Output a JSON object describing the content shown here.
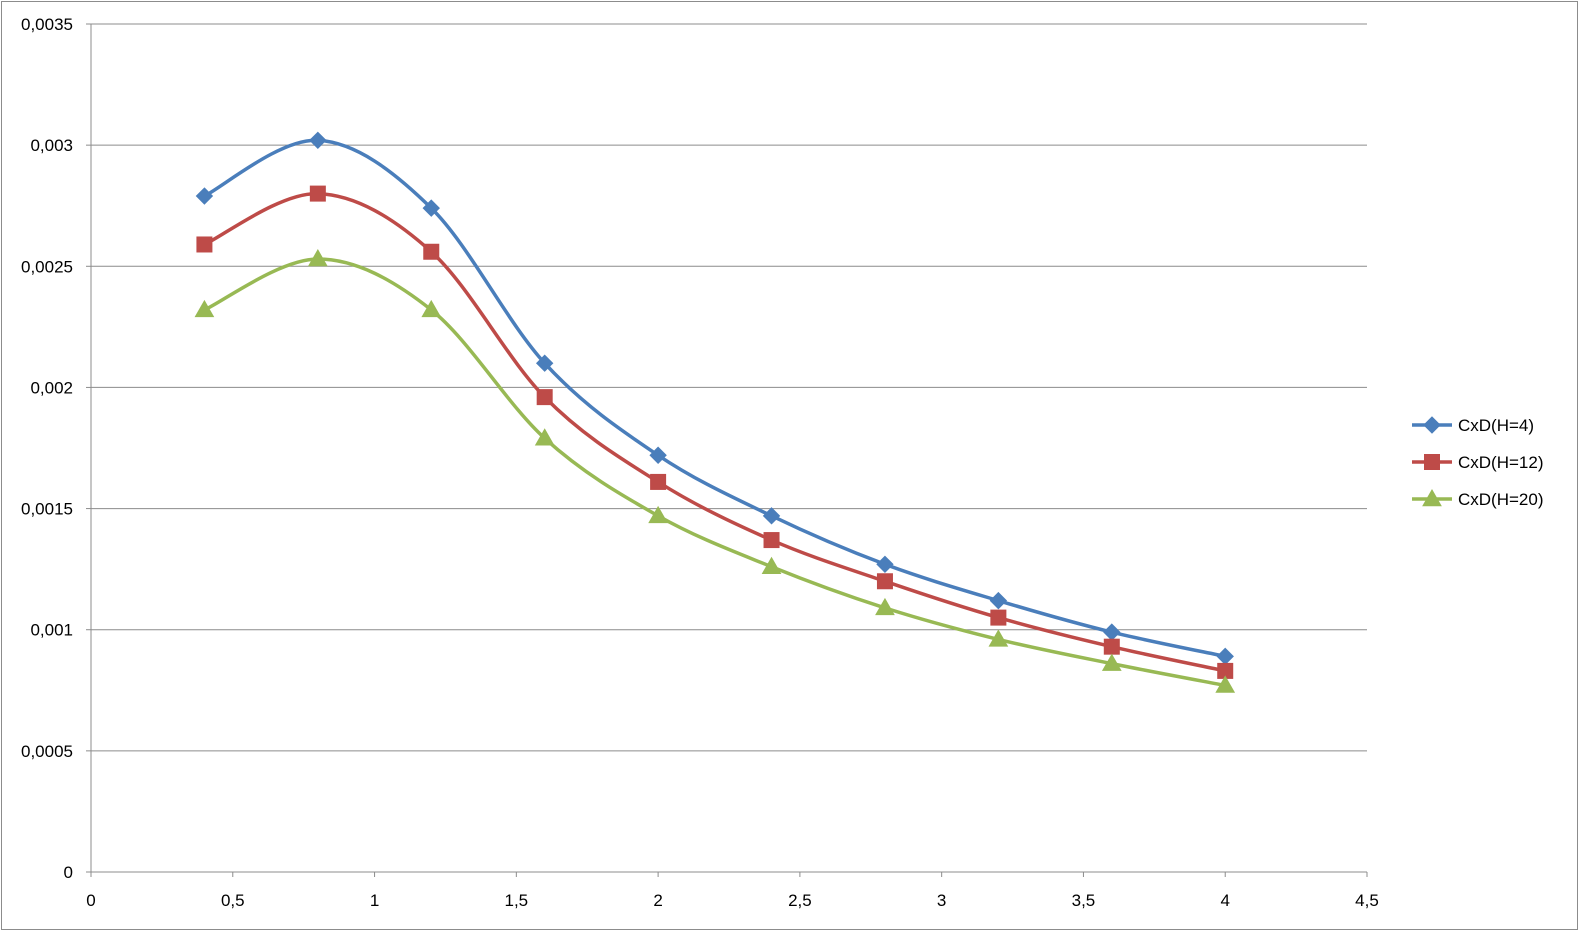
{
  "chart_data": {
    "type": "line",
    "title": "",
    "xlabel": "",
    "ylabel": "",
    "x": [
      0.4,
      0.8,
      1.2,
      1.6,
      2.0,
      2.4,
      2.8,
      3.2,
      3.6,
      4.0
    ],
    "xlim": [
      0,
      4.5
    ],
    "ylim": [
      0,
      0.0035
    ],
    "x_ticks": [
      {
        "value": 0,
        "label": "0"
      },
      {
        "value": 0.5,
        "label": "0,5"
      },
      {
        "value": 1,
        "label": "1"
      },
      {
        "value": 1.5,
        "label": "1,5"
      },
      {
        "value": 2,
        "label": "2"
      },
      {
        "value": 2.5,
        "label": "2,5"
      },
      {
        "value": 3,
        "label": "3"
      },
      {
        "value": 3.5,
        "label": "3,5"
      },
      {
        "value": 4,
        "label": "4"
      },
      {
        "value": 4.5,
        "label": "4,5"
      }
    ],
    "y_ticks": [
      {
        "value": 0,
        "label": "0"
      },
      {
        "value": 0.0005,
        "label": "0,0005"
      },
      {
        "value": 0.001,
        "label": "0,001"
      },
      {
        "value": 0.0015,
        "label": "0,0015"
      },
      {
        "value": 0.002,
        "label": "0,002"
      },
      {
        "value": 0.0025,
        "label": "0,0025"
      },
      {
        "value": 0.003,
        "label": "0,003"
      },
      {
        "value": 0.0035,
        "label": "0,0035"
      }
    ],
    "grid": "horizontal",
    "legend_position": "right",
    "smooth": true,
    "series": [
      {
        "name": "CxD(H=4)",
        "color": "#4a7ebb",
        "marker": "diamond",
        "values": [
          0.00279,
          0.00302,
          0.00274,
          0.0021,
          0.00172,
          0.00147,
          0.00127,
          0.00112,
          0.00099,
          0.00089
        ]
      },
      {
        "name": "CxD(H=12)",
        "color": "#be4b48",
        "marker": "square",
        "values": [
          0.00259,
          0.0028,
          0.00256,
          0.00196,
          0.00161,
          0.00137,
          0.0012,
          0.00105,
          0.00093,
          0.00083
        ]
      },
      {
        "name": "CxD(H=20)",
        "color": "#98b954",
        "marker": "triangle",
        "values": [
          0.00232,
          0.00253,
          0.00232,
          0.00179,
          0.00147,
          0.00126,
          0.00109,
          0.00096,
          0.00086,
          0.00077
        ]
      }
    ]
  }
}
